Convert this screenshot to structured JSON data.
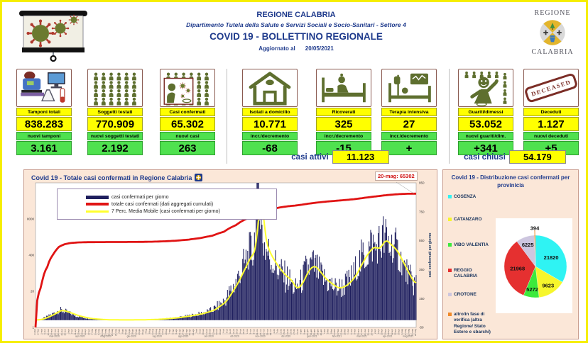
{
  "page": {
    "border_color": "#F6EE00"
  },
  "header": {
    "region": "REGIONE CALABRIA",
    "department": "Dipartimento Tutela della Salute e Servizi Sociali e Socio-Sanitari - Settore 4",
    "title": "COVID 19 - BOLLETTINO REGIONALE",
    "updated_label": "Aggiornato al",
    "updated_date": "20/05/2021",
    "logo_right": {
      "line1": "REGIONE",
      "line2": "CALABRIA"
    }
  },
  "stats": {
    "cards": [
      {
        "icon": "lab-icon",
        "label": "Tamponi totali",
        "value": "838.283",
        "sub_label": "nuovi tamponi",
        "sub_value": "3.161"
      },
      {
        "icon": "people-grid-icon",
        "label": "Soggetti testati",
        "value": "770.909",
        "sub_label": "nuovi soggetti testati",
        "sub_value": "2.192"
      },
      {
        "icon": "infected-person-icon",
        "label": "Casi confermati",
        "value": "65.302",
        "sub_label": "nuovi casi",
        "sub_value": "263"
      },
      {
        "icon": "house-icon",
        "label": "Isolati a domicilio",
        "value": "10.771",
        "sub_label": "incr./decremento",
        "sub_value": "-68"
      },
      {
        "icon": "hospital-bed-icon",
        "label": "Ricoverati",
        "value": "325",
        "sub_label": "incr./decremento",
        "sub_value": "-15"
      },
      {
        "icon": "icu-bed-icon",
        "label": "Terapia intensiva",
        "value": "27",
        "sub_label": "incr./decremento",
        "sub_value": "+"
      },
      {
        "icon": "recovered-person-icon",
        "label": "Guariti/dimessi",
        "value": "53.052",
        "sub_label": "nuovi guariti/dim.",
        "sub_value": "+341"
      },
      {
        "icon": "deceased-stamp-icon",
        "label": "Deceduti",
        "value": "1.127",
        "sub_label": "nuovi deceduti",
        "sub_value": "+5",
        "stamp": "DECEASED"
      }
    ],
    "casi_attivi": {
      "label": "casi attivi",
      "value": "11.123"
    },
    "casi_chiusi": {
      "label": "casi chiusi",
      "value": "54.179"
    }
  },
  "chart_data": [
    {
      "type": "bar",
      "title": "Covid 19 - Totale casi confermati in Regione Calabria",
      "annotation": "20-mag: 65302",
      "legend": [
        "casi confermati per giorno",
        "totale casi confermati (dati aggregati cumulati)",
        "7 Perc. Media Mobile (casi confermati per giorno)"
      ],
      "left_axis": {
        "scale": "log",
        "ticks": [
          8000,
          400,
          20,
          1
        ],
        "range": [
          1,
          160000
        ]
      },
      "right_axis": {
        "scale": "linear",
        "ticks": [
          950,
          750,
          550,
          350,
          150,
          -50
        ],
        "range": [
          -50,
          950
        ],
        "label": "casi confermati  per giorno"
      },
      "x_note": "daily dates from 23-feb-2020 to 20-mag-2021, rotated tick labels too small to read",
      "x": [
        "2020-02-23",
        "2020-03-01",
        "2020-03-08",
        "2020-03-15",
        "2020-03-22",
        "2020-03-29",
        "2020-04-05",
        "2020-04-12",
        "2020-04-19",
        "2020-04-26",
        "2020-05-03",
        "2020-05-10",
        "2020-05-17",
        "2020-05-31",
        "2020-06-14",
        "2020-06-28",
        "2020-07-12",
        "2020-07-26",
        "2020-08-09",
        "2020-08-23",
        "2020-09-06",
        "2020-09-20",
        "2020-10-04",
        "2020-10-18",
        "2020-11-01",
        "2020-11-08",
        "2020-11-14",
        "2020-11-18",
        "2020-11-22",
        "2020-11-29",
        "2020-12-06",
        "2020-12-13",
        "2020-12-20",
        "2020-12-27",
        "2021-01-03",
        "2021-01-10",
        "2021-01-17",
        "2021-01-24",
        "2021-01-31",
        "2021-02-07",
        "2021-02-14",
        "2021-02-21",
        "2021-02-28",
        "2021-03-07",
        "2021-03-14",
        "2021-03-21",
        "2021-03-28",
        "2021-04-04",
        "2021-04-11",
        "2021-04-18",
        "2021-04-25",
        "2021-05-02",
        "2021-05-09",
        "2021-05-16",
        "2021-05-20"
      ],
      "series": [
        {
          "name": "casi confermati per giorno",
          "type": "bar",
          "axis": "right",
          "color": "#1F1F5E",
          "values": [
            1,
            8,
            25,
            45,
            70,
            60,
            45,
            30,
            20,
            12,
            8,
            5,
            3,
            2,
            2,
            3,
            5,
            10,
            18,
            30,
            45,
            70,
            130,
            260,
            430,
            480,
            950,
            600,
            500,
            420,
            360,
            310,
            280,
            210,
            260,
            350,
            380,
            330,
            280,
            250,
            220,
            230,
            260,
            310,
            390,
            460,
            510,
            490,
            560,
            520,
            480,
            400,
            320,
            250,
            263
          ]
        },
        {
          "name": "totale casi confermati (dati aggregati cumulati)",
          "type": "line",
          "axis": "left",
          "color": "#E01414",
          "values": [
            1,
            30,
            150,
            420,
            800,
            1000,
            1090,
            1140,
            1160,
            1170,
            1175,
            1180,
            1183,
            1186,
            1190,
            1200,
            1220,
            1260,
            1330,
            1450,
            1650,
            2000,
            2800,
            4800,
            8500,
            11000,
            13500,
            15000,
            16500,
            18200,
            20000,
            21700,
            23200,
            24300,
            25800,
            27800,
            29800,
            31600,
            33200,
            34700,
            36200,
            37700,
            39300,
            41300,
            43800,
            46800,
            49800,
            52800,
            56000,
            59000,
            61500,
            63300,
            64500,
            65100,
            65302
          ]
        },
        {
          "name": "7 Perc. Media Mobile (casi confermati per giorno)",
          "type": "line",
          "axis": "right",
          "color": "#FFFF2E",
          "derived_from": "7-day moving average of daily bars"
        }
      ]
    },
    {
      "type": "pie",
      "title": "Covid 19 - Distribuzione casi confermati per provinicia",
      "labels": [
        "COSENZA",
        "CATANZARO",
        "VIBO VALENTIA",
        "REGGIO CALABRIA",
        "CROTONE",
        "altro/in fase di verifica (altra Regione/ Stato Estero e sbarchi)"
      ],
      "values": [
        21820,
        9623,
        5272,
        21968,
        6225,
        394
      ],
      "colors": [
        "#2FF3F3",
        "#F6F62C",
        "#3CE93C",
        "#E53030",
        "#CDC6DF",
        "#EF8929"
      ],
      "start_angle": "12 o'clock",
      "direction": "clockwise"
    }
  ]
}
